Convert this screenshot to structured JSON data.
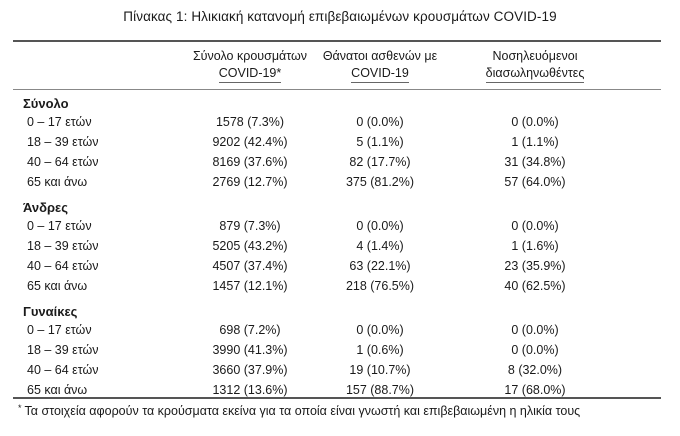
{
  "title": "Πίνακας 1: Ηλικιακή κατανομή επιβεβαιωμένων κρουσμάτων COVID-19",
  "columns": {
    "cases": [
      "Σύνολο κρουσμάτων",
      "COVID-19*"
    ],
    "deaths": [
      "Θάνατοι ασθενών με",
      "COVID-19"
    ],
    "hosp": [
      "Νοσηλευόμενοι",
      "διασωληνωθέντες"
    ]
  },
  "groups": [
    {
      "name": "Σύνολο",
      "rows": [
        {
          "age": "0 – 17 ετών",
          "cases": "1578 (7.3%)",
          "deaths": "0 (0.0%)",
          "hosp": "0 (0.0%)"
        },
        {
          "age": "18 – 39 ετών",
          "cases": "9202 (42.4%)",
          "deaths": "5 (1.1%)",
          "hosp": "1 (1.1%)"
        },
        {
          "age": "40 – 64 ετών",
          "cases": "8169 (37.6%)",
          "deaths": "82 (17.7%)",
          "hosp": "31 (34.8%)"
        },
        {
          "age": "65 και άνω",
          "cases": "2769 (12.7%)",
          "deaths": "375 (81.2%)",
          "hosp": "57 (64.0%)"
        }
      ]
    },
    {
      "name": "Άνδρες",
      "rows": [
        {
          "age": "0 – 17 ετών",
          "cases": "879 (7.3%)",
          "deaths": "0 (0.0%)",
          "hosp": "0 (0.0%)"
        },
        {
          "age": "18 – 39 ετών",
          "cases": "5205 (43.2%)",
          "deaths": "4 (1.4%)",
          "hosp": "1 (1.6%)"
        },
        {
          "age": "40 – 64 ετών",
          "cases": "4507 (37.4%)",
          "deaths": "63 (22.1%)",
          "hosp": "23 (35.9%)"
        },
        {
          "age": "65 και άνω",
          "cases": "1457 (12.1%)",
          "deaths": "218 (76.5%)",
          "hosp": "40 (62.5%)"
        }
      ]
    },
    {
      "name": "Γυναίκες",
      "rows": [
        {
          "age": "0 – 17 ετών",
          "cases": "698 (7.2%)",
          "deaths": "0 (0.0%)",
          "hosp": "0 (0.0%)"
        },
        {
          "age": "18 – 39 ετών",
          "cases": "3990 (41.3%)",
          "deaths": "1 (0.6%)",
          "hosp": "0 (0.0%)"
        },
        {
          "age": "40 – 64 ετών",
          "cases": "3660 (37.9%)",
          "deaths": "19 (10.7%)",
          "hosp": "8 (32.0%)"
        },
        {
          "age": "65 και άνω",
          "cases": "1312 (13.6%)",
          "deaths": "157 (88.7%)",
          "hosp": "17 (68.0%)"
        }
      ]
    }
  ],
  "footnote": {
    "mark": "*",
    "text": "Τα στοιχεία αφορούν τα κρούσματα εκείνα για τα οποία είναι γνωστή και επιβεβαιωμένη η ηλικία τους"
  }
}
